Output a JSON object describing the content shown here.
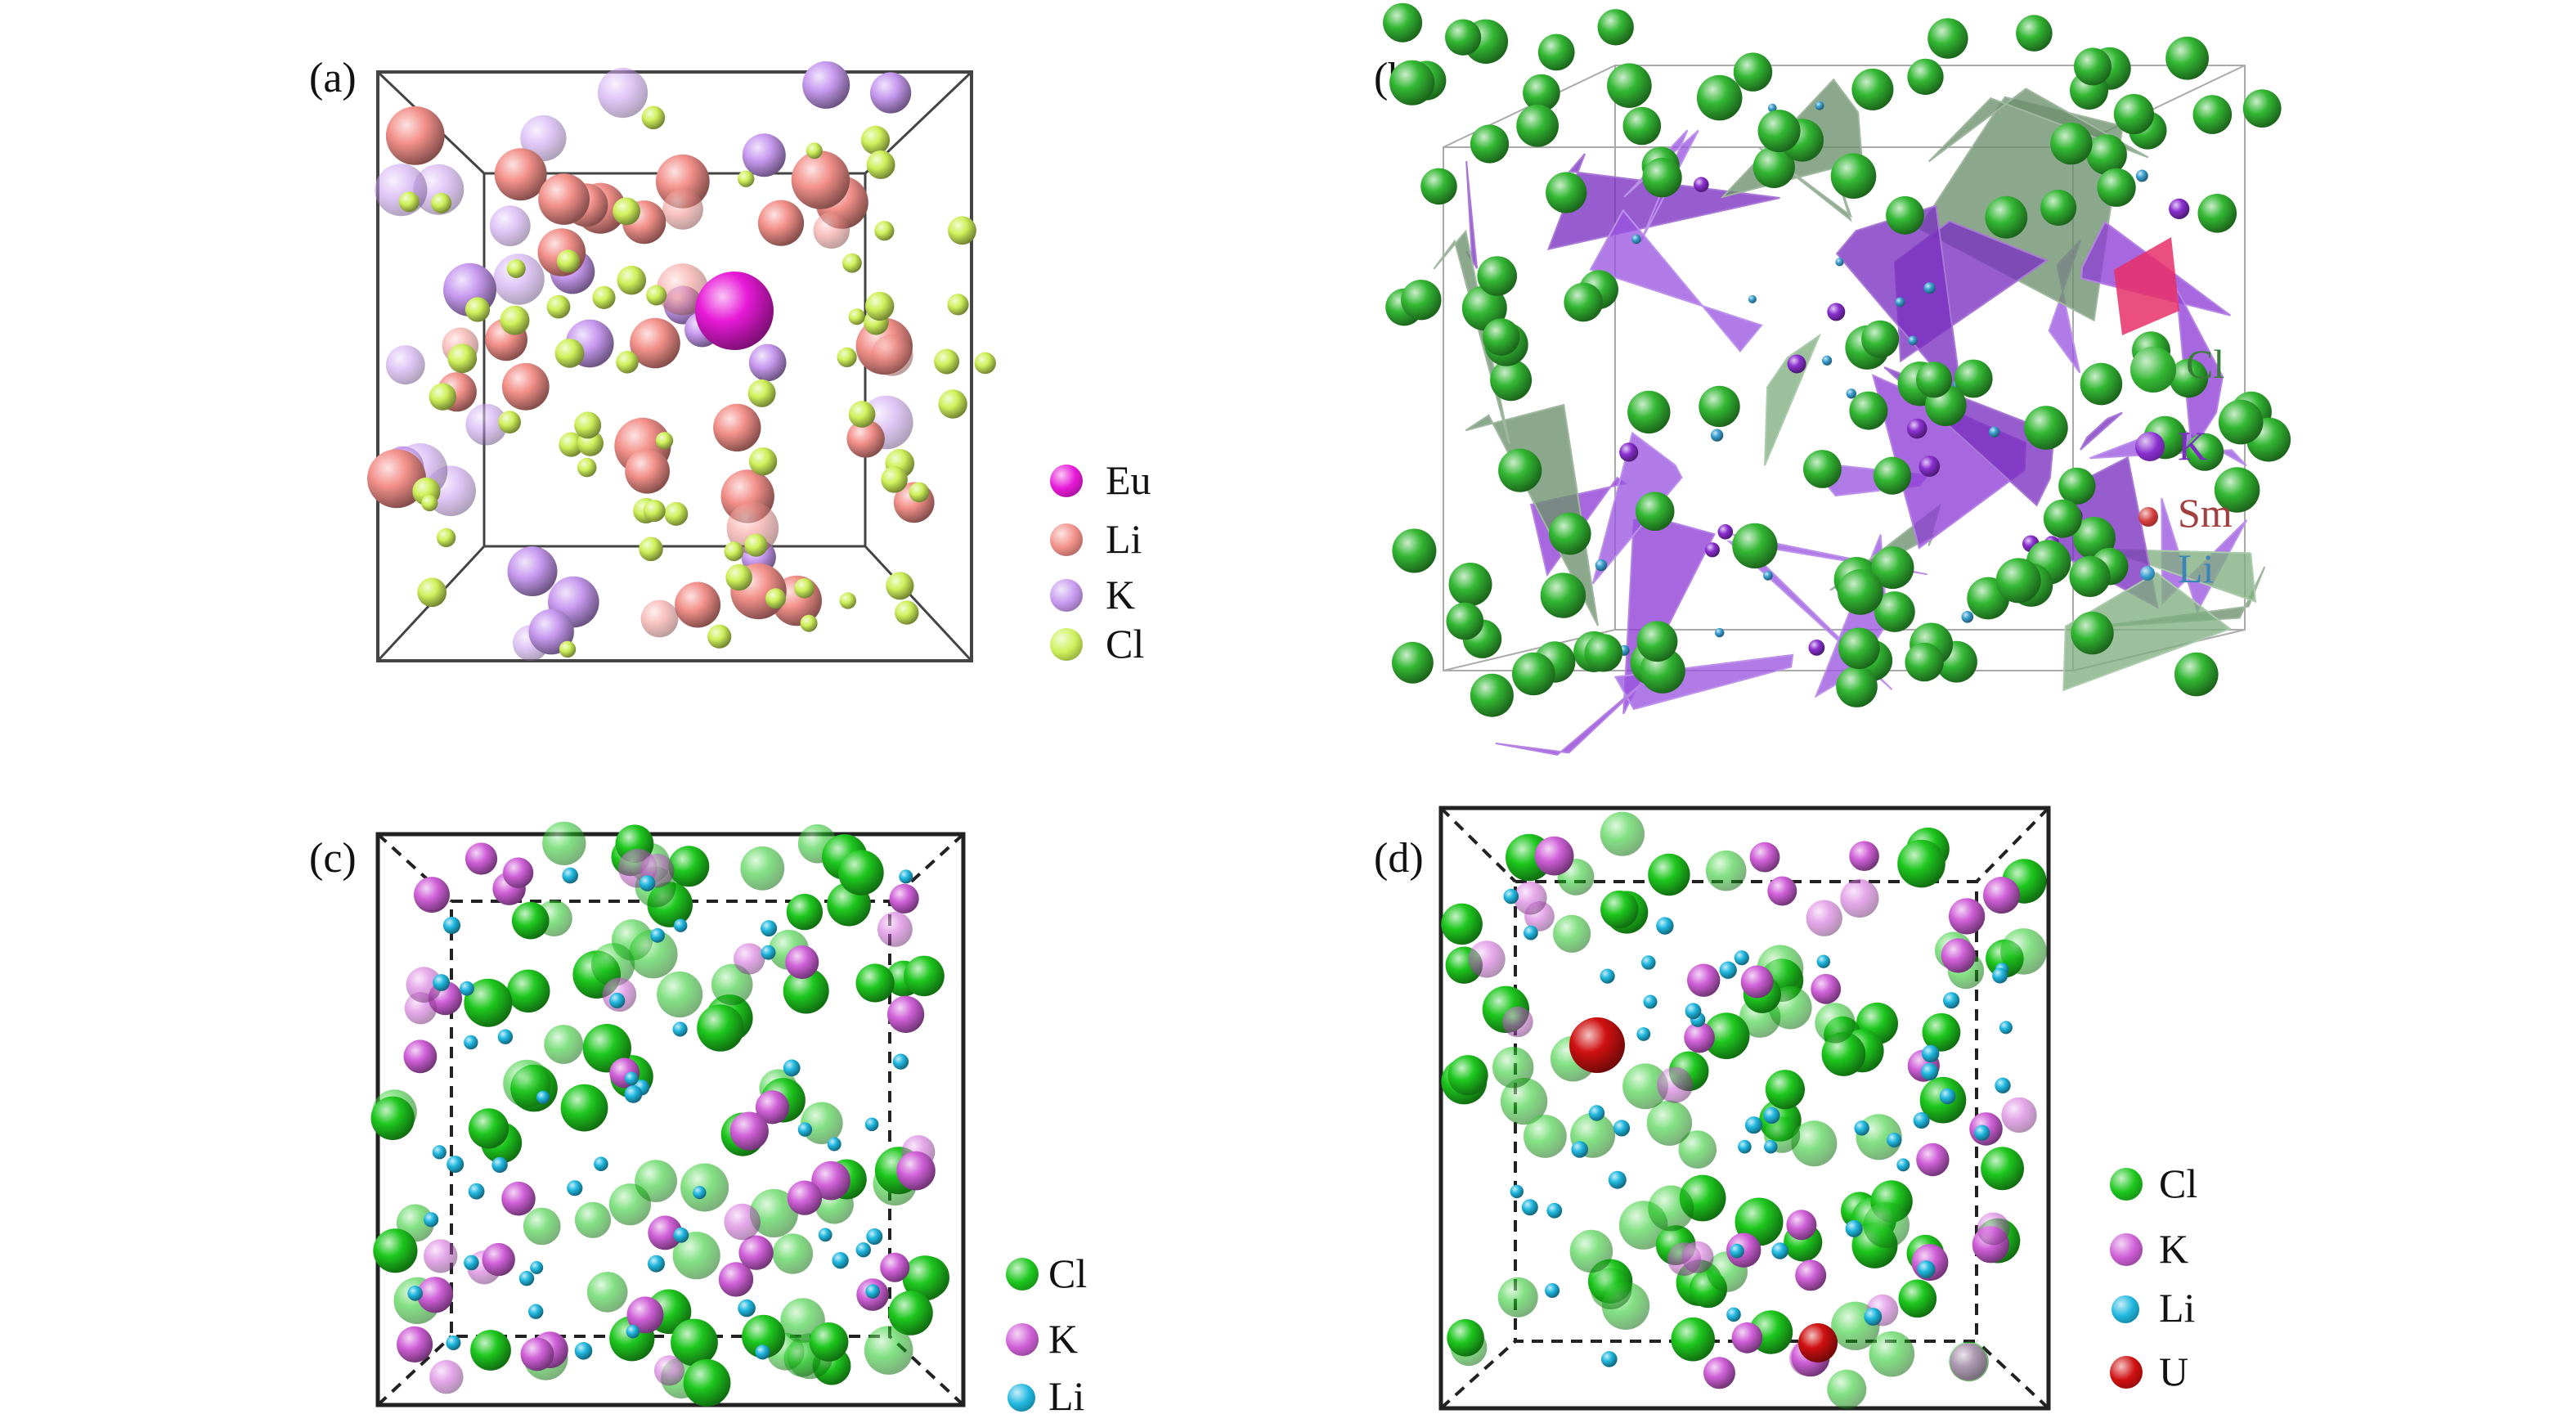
{
  "panels": [
    {
      "id": "a",
      "label": "(a)",
      "legend": [
        {
          "name": "Eu",
          "color": "#e81ad8",
          "text_color": "#111111"
        },
        {
          "name": "Li",
          "color": "#f3908a",
          "text_color": "#111111"
        },
        {
          "name": "K",
          "color": "#c89af0",
          "text_color": "#111111"
        },
        {
          "name": "Cl",
          "color": "#cff05a",
          "text_color": "#111111"
        }
      ]
    },
    {
      "id": "b",
      "label": "(b)",
      "legend": [
        {
          "name": "Cl",
          "color": "#33b833",
          "text_color": "#3a7d3a"
        },
        {
          "name": "K",
          "color": "#8a2fd0",
          "text_color": "#7a2fc0"
        },
        {
          "name": "Sm",
          "color": "#d23b3b",
          "text_color": "#a04040"
        },
        {
          "name": "Li",
          "color": "#3aa0d0",
          "text_color": "#3a85b5"
        }
      ]
    },
    {
      "id": "c",
      "label": "(c)",
      "legend": [
        {
          "name": "Cl",
          "color": "#1ec81e",
          "text_color": "#111111"
        },
        {
          "name": "K",
          "color": "#d060d8",
          "text_color": "#111111"
        },
        {
          "name": "Li",
          "color": "#20b8e0",
          "text_color": "#111111"
        }
      ]
    },
    {
      "id": "d",
      "label": "(d)",
      "legend": [
        {
          "name": "Cl",
          "color": "#1ec81e",
          "text_color": "#111111"
        },
        {
          "name": "K",
          "color": "#d060d8",
          "text_color": "#111111"
        },
        {
          "name": "Li",
          "color": "#20b8e0",
          "text_color": "#111111"
        },
        {
          "name": "U",
          "color": "#d01010",
          "text_color": "#111111"
        }
      ]
    }
  ]
}
